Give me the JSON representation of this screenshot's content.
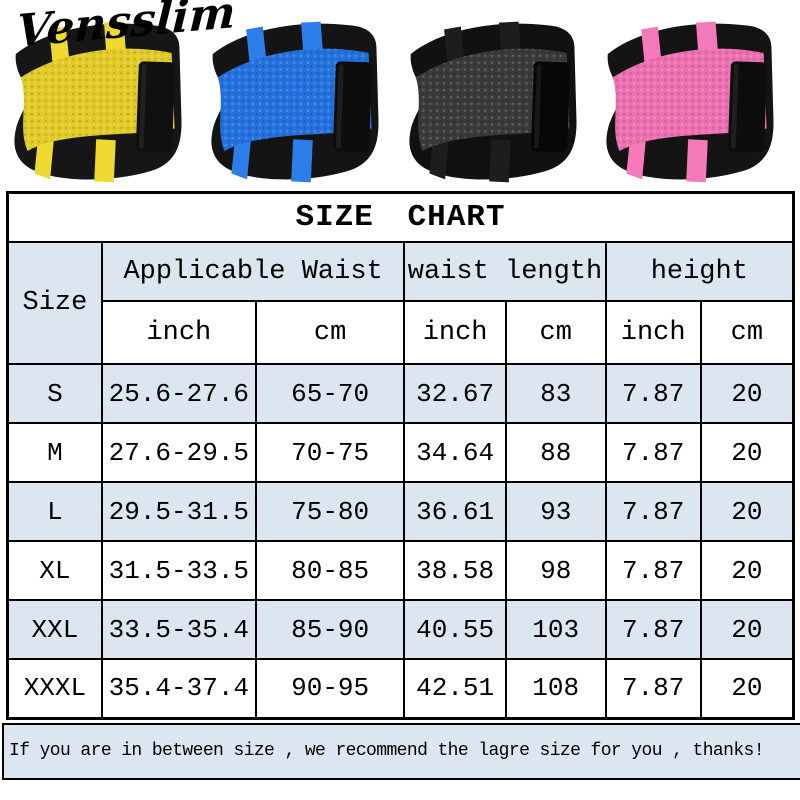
{
  "brand": {
    "logo_text": "Vensslim"
  },
  "products": [
    {
      "name": "yellow",
      "mesh": "#e2cb28",
      "strap": "#edd92f",
      "band": "#161616",
      "velcro": "#101010"
    },
    {
      "name": "blue",
      "mesh": "#2371de",
      "strap": "#2e7ee9",
      "band": "#141414",
      "velcro": "#0d0d0d"
    },
    {
      "name": "black",
      "mesh": "#3a3a3a",
      "strap": "#1d1d1d",
      "band": "#111111",
      "velcro": "#070707"
    },
    {
      "name": "pink",
      "mesh": "#ee70b2",
      "strap": "#f47ab9",
      "band": "#141414",
      "velcro": "#0d0d0d"
    }
  ],
  "size_chart": {
    "title": "SIZE CHART",
    "columns": {
      "size_label": "Size",
      "group1": "Applicable Waist",
      "group2": "waist length",
      "group3": "height"
    },
    "units": [
      "inch",
      "cm",
      "inch",
      "cm",
      "inch",
      "cm"
    ],
    "rows": [
      {
        "size": "S",
        "values": [
          "25.6-27.6",
          "65-70",
          "32.67",
          "83",
          "7.87",
          "20"
        ]
      },
      {
        "size": "M",
        "values": [
          "27.6-29.5",
          "70-75",
          "34.64",
          "88",
          "7.87",
          "20"
        ]
      },
      {
        "size": "L",
        "values": [
          "29.5-31.5",
          "75-80",
          "36.61",
          "93",
          "7.87",
          "20"
        ]
      },
      {
        "size": "XL",
        "values": [
          "31.5-33.5",
          "80-85",
          "38.58",
          "98",
          "7.87",
          "20"
        ]
      },
      {
        "size": "XXL",
        "values": [
          "33.5-35.4",
          "85-90",
          "40.55",
          "103",
          "7.87",
          "20"
        ]
      },
      {
        "size": "XXXL",
        "values": [
          "35.4-37.4",
          "90-95",
          "42.51",
          "108",
          "7.87",
          "20"
        ]
      }
    ]
  },
  "footer_note": "If you are in between size , we recommend the lagre size for you , thanks!",
  "colors": {
    "header_blue": "#dce6f1",
    "border": "#000000",
    "background": "#ffffff"
  }
}
